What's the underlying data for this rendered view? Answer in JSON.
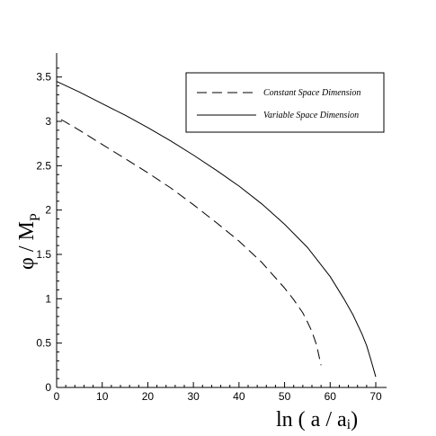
{
  "chart_data": {
    "type": "line",
    "xlabel": "ln ( a / a",
    "xlabel_sub": "i",
    "xlabel_close": ")",
    "ylabel": "φ / M",
    "ylabel_sub": "P",
    "xlim": [
      0,
      72
    ],
    "ylim": [
      0,
      3.75
    ],
    "xticks": [
      0,
      10,
      20,
      30,
      40,
      50,
      60,
      70
    ],
    "yticks": [
      0,
      0.5,
      1,
      1.5,
      2,
      2.5,
      3,
      3.5
    ],
    "ytick_labels": [
      "0",
      "0.5",
      "1",
      "1.5",
      "2",
      "2.5",
      "3",
      "3.5"
    ],
    "grid": false,
    "legend_position": "top-right",
    "series": [
      {
        "name": "Constant Space Dimension",
        "style": "dashed",
        "color": "#000000",
        "x": [
          1,
          5,
          10,
          15,
          20,
          25,
          30,
          35,
          40,
          45,
          50,
          52,
          54,
          55,
          56,
          57,
          58
        ],
        "y": [
          3.02,
          2.9,
          2.74,
          2.58,
          2.42,
          2.25,
          2.06,
          1.86,
          1.65,
          1.41,
          1.12,
          0.99,
          0.84,
          0.74,
          0.63,
          0.48,
          0.25
        ]
      },
      {
        "name": "Variable Space Dimension",
        "style": "solid",
        "color": "#000000",
        "x": [
          0,
          5,
          10,
          15,
          20,
          25,
          30,
          35,
          40,
          45,
          50,
          55,
          60,
          63,
          65,
          67,
          68,
          69,
          70
        ],
        "y": [
          3.45,
          3.33,
          3.2,
          3.07,
          2.93,
          2.78,
          2.62,
          2.45,
          2.27,
          2.07,
          1.84,
          1.58,
          1.25,
          1.0,
          0.82,
          0.6,
          0.47,
          0.3,
          0.12
        ]
      }
    ]
  }
}
